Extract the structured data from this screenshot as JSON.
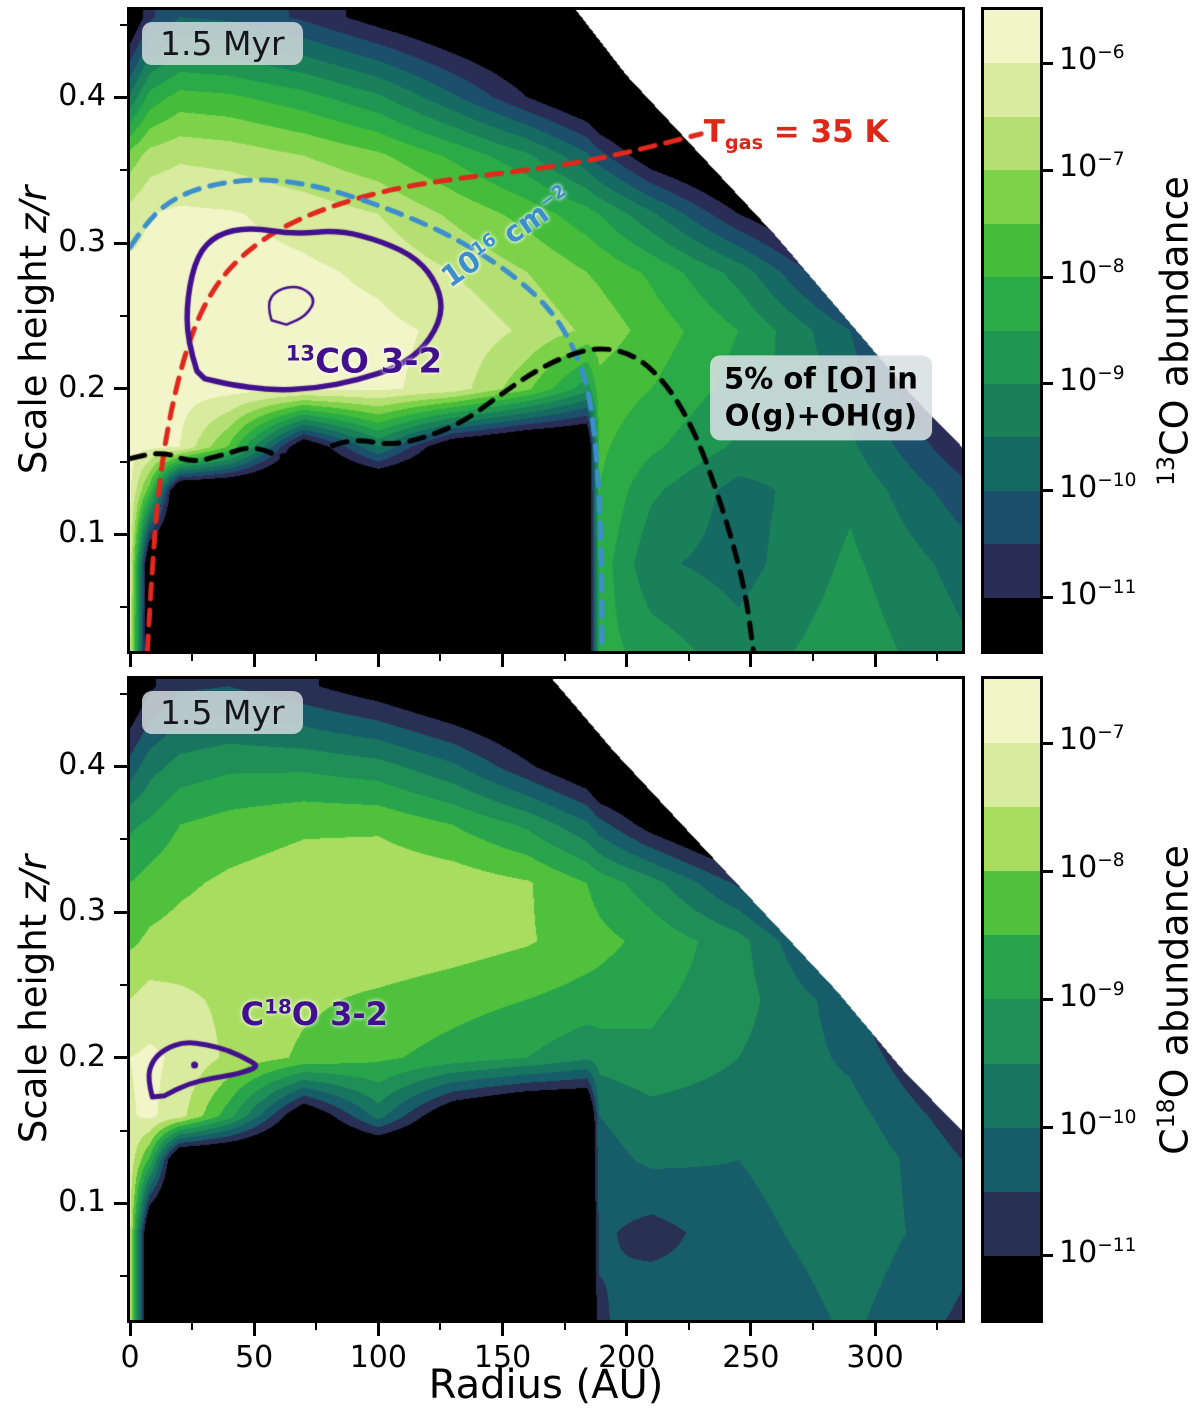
{
  "figure": {
    "xlabel": "Radius (AU)",
    "ylabel_prefix": "Scale height ",
    "ylabel_italic": "z/r"
  },
  "annotations": {
    "time_badge": "1.5 Myr",
    "tgas": {
      "t": "T",
      "sub": "gas",
      "rest": " = 35 K"
    },
    "column": {
      "base": "10",
      "sup": "16",
      "mid": " cm",
      "sup2": "−2"
    },
    "oxygen_line1": "5% of [O] in",
    "oxygen_line2": "O(g)+OH(g)",
    "co32": {
      "prefix": "",
      "sup": "13",
      "rest": "CO 3-2"
    },
    "c18o32": {
      "prefix": "C",
      "sup": "18",
      "rest": "O 3-2"
    }
  },
  "chart_data": [
    {
      "id": "top",
      "type": "heatmap",
      "subtype": "contour-abundance-map",
      "molecule": "13CO",
      "time_annotation": "1.5 Myr",
      "xlabel": "Radius (AU)",
      "ylabel": "Scale height z/r",
      "xlim": [
        0,
        335
      ],
      "ylim": [
        0.02,
        0.46
      ],
      "xticks": [
        0,
        50,
        100,
        150,
        200,
        250,
        300
      ],
      "xticks_minor": [
        25,
        75,
        125,
        175,
        225,
        275,
        325
      ],
      "yticks": [
        0.1,
        0.2,
        0.3,
        0.4
      ],
      "yticks_minor": [
        0.05,
        0.15,
        0.25,
        0.35,
        0.45
      ],
      "show_xtick_labels": false,
      "levels": [
        -6,
        -6.5,
        -7,
        -7.5,
        -8,
        -8.5,
        -9,
        -9.5,
        -10,
        -10.5,
        -11
      ],
      "band_colors": [
        "#f1f5c8",
        "#d9eb9e",
        "#b4e073",
        "#7ed24a",
        "#45bd3a",
        "#2aab47",
        "#1f9651",
        "#19805a",
        "#156b62",
        "#1b4f6b",
        "#2a2d56",
        "#000000"
      ],
      "grid_r": [
        0,
        8,
        20,
        40,
        70,
        100,
        130,
        160,
        184,
        189,
        210,
        245,
        290,
        335
      ],
      "grid_z": [
        0.02,
        0.08,
        0.13,
        0.16,
        0.2,
        0.24,
        0.28,
        0.32,
        0.36,
        0.4,
        0.455
      ],
      "grid_log_abundance": [
        [
          -6.4,
          -12.5,
          -12.5,
          -12.5,
          -12.5,
          -12.5,
          -12.5,
          -12.5,
          -12.5,
          -8.3,
          -8.7,
          -9.3,
          -8.7,
          -9.4
        ],
        [
          -6.1,
          -12.5,
          -12.5,
          -12.5,
          -12.5,
          -12.5,
          -12.5,
          -12.5,
          -12.5,
          -8.2,
          -9.4,
          -9.7,
          -8.9,
          -9.7
        ],
        [
          -5.9,
          -7.8,
          -12.5,
          -12.5,
          -12.5,
          -12.5,
          -12.5,
          -12.5,
          -12.5,
          -8.0,
          -8.9,
          -9.7,
          -9.1,
          -10.3
        ],
        [
          -5.85,
          -5.9,
          -6.0,
          -7.6,
          -11.8,
          -9.5,
          -11.8,
          -12.5,
          -12.5,
          -7.9,
          -8.4,
          -9.1,
          -9.4,
          -10.9
        ],
        [
          -5.8,
          -5.8,
          -5.8,
          -5.8,
          -5.85,
          -5.9,
          -6.2,
          -7.4,
          -8.8,
          -7.7,
          -8.0,
          -8.7,
          -9.7,
          -11.6
        ],
        [
          -5.8,
          -5.78,
          -5.78,
          -5.8,
          -5.82,
          -5.88,
          -6.1,
          -6.6,
          -7.1,
          -7.2,
          -7.7,
          -8.5,
          -10.0,
          -12.3
        ],
        [
          -5.85,
          -5.8,
          -5.78,
          -5.8,
          -5.9,
          -6.1,
          -6.5,
          -7.0,
          -7.5,
          -7.6,
          -8.1,
          -9.2,
          -11.3,
          -12.5
        ],
        [
          -6.3,
          -6.0,
          -5.9,
          -5.95,
          -6.2,
          -6.5,
          -7.1,
          -7.7,
          -8.3,
          -8.5,
          -9.4,
          -11.0,
          -12.5,
          -12.5
        ],
        [
          -7.3,
          -6.8,
          -6.6,
          -6.7,
          -7.0,
          -7.4,
          -8.1,
          -8.9,
          -9.9,
          -10.3,
          -11.5,
          -12.5,
          -12.5,
          -12.5
        ],
        [
          -9.4,
          -8.3,
          -7.8,
          -7.9,
          -8.3,
          -8.9,
          -9.9,
          -11.0,
          -11.8,
          -12.2,
          -12.5,
          -12.5,
          -12.5,
          -12.5
        ],
        [
          -11.8,
          -10.6,
          -10.0,
          -10.1,
          -10.6,
          -11.3,
          -11.9,
          -12.3,
          -12.5,
          -12.5,
          -12.5,
          -12.5,
          -12.5,
          -12.5
        ]
      ],
      "surface": [
        [
          0,
          0.5
        ],
        [
          160,
          0.5
        ],
        [
          175,
          0.47
        ],
        [
          200,
          0.415
        ],
        [
          230,
          0.36
        ],
        [
          260,
          0.305
        ],
        [
          290,
          0.245
        ],
        [
          315,
          0.195
        ],
        [
          335,
          0.16
        ]
      ],
      "colorbar": {
        "prefix": "",
        "sup": "13",
        "rest": "CO abundance",
        "tick_exponents": [
          "−6",
          "−7",
          "−8",
          "−9",
          "−10",
          "−11"
        ]
      },
      "overlays": [
        {
          "name": "tgas-contour",
          "label": "T_gas = 35 K",
          "color": "#e0281c",
          "width": 5,
          "dash": [
            15,
            11
          ],
          "points": [
            [
              7,
              0.02
            ],
            [
              9,
              0.08
            ],
            [
              12,
              0.14
            ],
            [
              17,
              0.19
            ],
            [
              24,
              0.235
            ],
            [
              33,
              0.268
            ],
            [
              45,
              0.292
            ],
            [
              62,
              0.312
            ],
            [
              82,
              0.326
            ],
            [
              105,
              0.337
            ],
            [
              130,
              0.344
            ],
            [
              155,
              0.349
            ],
            [
              180,
              0.355
            ],
            [
              205,
              0.364
            ],
            [
              230,
              0.375
            ]
          ]
        },
        {
          "name": "column-density-contour",
          "label": "10^16 cm^-2",
          "color": "#3d8fcc",
          "width": 5,
          "dash": [
            15,
            11
          ],
          "points": [
            [
              0,
              0.297
            ],
            [
              8,
              0.318
            ],
            [
              20,
              0.333
            ],
            [
              35,
              0.341
            ],
            [
              52,
              0.344
            ],
            [
              70,
              0.341
            ],
            [
              88,
              0.333
            ],
            [
              108,
              0.321
            ],
            [
              128,
              0.306
            ],
            [
              147,
              0.287
            ],
            [
              162,
              0.267
            ],
            [
              172,
              0.248
            ],
            [
              179,
              0.227
            ],
            [
              184,
              0.203
            ],
            [
              187,
              0.172
            ],
            [
              189,
              0.125
            ],
            [
              190,
              0.07
            ],
            [
              190,
              0.02
            ]
          ]
        },
        {
          "name": "oxygen-fraction-contour",
          "label": "5% of [O] in O(g)+OH(g)",
          "color": "#000000",
          "width": 5,
          "dash": [
            15,
            11
          ],
          "points": [
            [
              0,
              0.152
            ],
            [
              12,
              0.158
            ],
            [
              25,
              0.149
            ],
            [
              38,
              0.155
            ],
            [
              50,
              0.161
            ],
            [
              62,
              0.152
            ],
            [
              75,
              0.157
            ],
            [
              90,
              0.166
            ],
            [
              105,
              0.161
            ],
            [
              120,
              0.167
            ],
            [
              135,
              0.178
            ],
            [
              150,
              0.197
            ],
            [
              163,
              0.212
            ],
            [
              176,
              0.223
            ],
            [
              190,
              0.229
            ],
            [
              205,
              0.222
            ],
            [
              218,
              0.199
            ],
            [
              228,
              0.168
            ],
            [
              236,
              0.131
            ],
            [
              243,
              0.093
            ],
            [
              248,
              0.058
            ],
            [
              251,
              0.02
            ]
          ]
        },
        {
          "name": "co32-emitting-region-contour",
          "label": "13CO 3-2",
          "color": "#43108d",
          "width": 5.5,
          "closed": true,
          "points": [
            [
              27,
              0.212
            ],
            [
              23,
              0.233
            ],
            [
              23,
              0.263
            ],
            [
              27,
              0.292
            ],
            [
              35,
              0.306
            ],
            [
              48,
              0.311
            ],
            [
              66,
              0.306
            ],
            [
              84,
              0.309
            ],
            [
              102,
              0.301
            ],
            [
              116,
              0.289
            ],
            [
              124,
              0.271
            ],
            [
              126,
              0.251
            ],
            [
              119,
              0.229
            ],
            [
              108,
              0.215
            ],
            [
              92,
              0.206
            ],
            [
              74,
              0.2
            ],
            [
              56,
              0.199
            ],
            [
              40,
              0.203
            ],
            [
              30,
              0.207
            ]
          ]
        },
        {
          "name": "co32-inner-contour",
          "label": "13CO 3-2 inner",
          "color": "#43108d",
          "width": 2.5,
          "closed": true,
          "points": [
            [
              57,
              0.247
            ],
            [
              55,
              0.258
            ],
            [
              59,
              0.268
            ],
            [
              68,
              0.271
            ],
            [
              75,
              0.262
            ],
            [
              71,
              0.25
            ],
            [
              63,
              0.244
            ]
          ]
        }
      ],
      "labels": {
        "tgas": {
          "pos": [
            267,
            0.377
          ]
        },
        "column": {
          "pos": [
            150,
            0.306
          ],
          "rot": -35
        },
        "oxygen": {
          "pos": [
            277,
            0.196
          ]
        },
        "co32": {
          "pos": [
            93,
            0.221
          ]
        }
      }
    },
    {
      "id": "bottom",
      "type": "heatmap",
      "subtype": "contour-abundance-map",
      "molecule": "C18O",
      "time_annotation": "1.5 Myr",
      "xlabel": "Radius (AU)",
      "ylabel": "Scale height z/r",
      "xlim": [
        0,
        335
      ],
      "ylim": [
        0.02,
        0.46
      ],
      "xticks": [
        0,
        50,
        100,
        150,
        200,
        250,
        300
      ],
      "xticks_minor": [
        25,
        75,
        125,
        175,
        225,
        275,
        325
      ],
      "yticks": [
        0.1,
        0.2,
        0.3,
        0.4
      ],
      "yticks_minor": [
        0.05,
        0.15,
        0.25,
        0.35,
        0.45
      ],
      "show_xtick_labels": true,
      "levels": [
        -7,
        -7.5,
        -8,
        -8.5,
        -9,
        -9.5,
        -10,
        -10.5,
        -11
      ],
      "band_colors": [
        "#f1f5c8",
        "#d9eb9e",
        "#a9dd60",
        "#4fc13c",
        "#28a44c",
        "#1f8e57",
        "#187560",
        "#165d69",
        "#283055",
        "#000000"
      ],
      "grid_r": [
        0,
        8,
        20,
        40,
        70,
        100,
        130,
        160,
        184,
        189,
        210,
        245,
        290,
        335
      ],
      "grid_z": [
        0.02,
        0.08,
        0.13,
        0.16,
        0.2,
        0.24,
        0.28,
        0.32,
        0.36,
        0.4,
        0.455
      ],
      "grid_log_abundance": [
        [
          -7.6,
          -12.5,
          -12.5,
          -12.5,
          -12.5,
          -12.5,
          -12.5,
          -12.5,
          -12.5,
          -10.6,
          -10.1,
          -10.5,
          -9.9,
          -10.6
        ],
        [
          -7.4,
          -12.5,
          -12.5,
          -12.5,
          -12.5,
          -12.5,
          -12.5,
          -12.5,
          -12.5,
          -10.4,
          -10.7,
          -10.2,
          -9.7,
          -10.3
        ],
        [
          -7.2,
          -8.6,
          -12.5,
          -12.5,
          -12.5,
          -12.5,
          -12.5,
          -12.5,
          -12.5,
          -10.2,
          -9.9,
          -10.0,
          -9.6,
          -10.5
        ],
        [
          -7.05,
          -6.9,
          -7.3,
          -8.8,
          -11.8,
          -9.8,
          -11.8,
          -12.5,
          -12.5,
          -10.0,
          -9.7,
          -9.8,
          -9.8,
          -10.8
        ],
        [
          -7.0,
          -6.9,
          -7.1,
          -7.6,
          -8.1,
          -8.4,
          -8.7,
          -9.0,
          -9.4,
          -9.3,
          -9.1,
          -9.5,
          -10.1,
          -11.4
        ],
        [
          -7.5,
          -7.3,
          -7.4,
          -7.6,
          -7.9,
          -8.1,
          -8.3,
          -8.5,
          -8.7,
          -8.7,
          -8.9,
          -9.3,
          -10.3,
          -12.3
        ],
        [
          -8.1,
          -7.9,
          -7.8,
          -7.7,
          -7.65,
          -7.6,
          -7.75,
          -7.95,
          -8.25,
          -8.35,
          -8.65,
          -9.3,
          -11.2,
          -12.5
        ],
        [
          -8.5,
          -8.3,
          -8.1,
          -7.9,
          -7.7,
          -7.6,
          -7.7,
          -7.95,
          -8.5,
          -8.7,
          -9.3,
          -10.6,
          -12.5,
          -12.5
        ],
        [
          -9.1,
          -8.9,
          -8.5,
          -8.3,
          -8.1,
          -8.1,
          -8.5,
          -9.1,
          -9.9,
          -10.3,
          -11.3,
          -12.5,
          -12.5,
          -12.5
        ],
        [
          -10.3,
          -9.7,
          -9.3,
          -9.1,
          -9.1,
          -9.3,
          -9.9,
          -10.9,
          -11.7,
          -12.2,
          -12.5,
          -12.5,
          -12.5,
          -12.5
        ],
        [
          -11.8,
          -11.1,
          -10.6,
          -10.5,
          -10.9,
          -11.4,
          -12.0,
          -12.4,
          -12.5,
          -12.5,
          -12.5,
          -12.5,
          -12.5,
          -12.5
        ]
      ],
      "surface": [
        [
          0,
          0.5
        ],
        [
          150,
          0.5
        ],
        [
          170,
          0.46
        ],
        [
          195,
          0.41
        ],
        [
          225,
          0.355
        ],
        [
          255,
          0.3
        ],
        [
          285,
          0.245
        ],
        [
          312,
          0.19
        ],
        [
          335,
          0.15
        ]
      ],
      "colorbar": {
        "prefix": "C",
        "sup": "18",
        "rest": "O abundance",
        "tick_exponents": [
          "−7",
          "−8",
          "−9",
          "−10",
          "−11"
        ]
      },
      "overlays": [
        {
          "name": "c18o32-emitting-region-contour",
          "label": "C18O 3-2",
          "color": "#43108d",
          "width": 5,
          "closed": true,
          "points": [
            [
              9,
              0.173
            ],
            [
              7,
              0.186
            ],
            [
              9,
              0.198
            ],
            [
              14,
              0.206
            ],
            [
              22,
              0.211
            ],
            [
              31,
              0.209
            ],
            [
              40,
              0.205
            ],
            [
              48,
              0.198
            ],
            [
              52,
              0.194
            ],
            [
              44,
              0.189
            ],
            [
              33,
              0.186
            ],
            [
              23,
              0.182
            ],
            [
              14,
              0.174
            ]
          ]
        },
        {
          "name": "c18o32-inner-dot",
          "label": "C18O 3-2 peak",
          "color": "#43108d",
          "dot": [
            26,
            0.195
          ],
          "radius": 3.5
        }
      ],
      "labels": {
        "c18o32": {
          "pos": [
            73,
            0.232
          ]
        }
      }
    }
  ]
}
